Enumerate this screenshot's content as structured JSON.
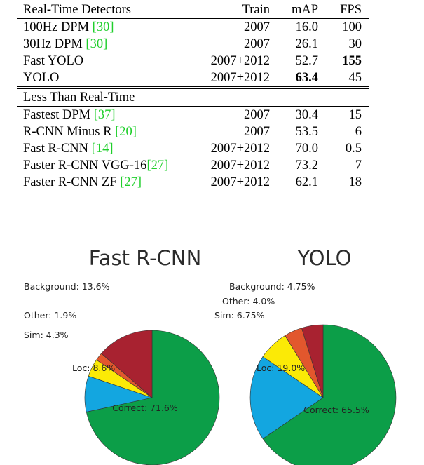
{
  "table": {
    "header": {
      "name": "Real-Time Detectors",
      "train": "Train",
      "map": "mAP",
      "fps": "FPS"
    },
    "realtime_rows": [
      {
        "name": "100Hz DPM ",
        "cite": "[30]",
        "train": "2007",
        "map": "16.0",
        "fps": "100"
      },
      {
        "name": "30Hz DPM ",
        "cite": "[30]",
        "train": "2007",
        "map": "26.1",
        "fps": "30"
      },
      {
        "name": "Fast YOLO",
        "cite": "",
        "train": "2007+2012",
        "map": "52.7",
        "fps": "155"
      },
      {
        "name": "YOLO",
        "cite": "",
        "train": "2007+2012",
        "map": "63.4",
        "fps": "45"
      }
    ],
    "section2_title": "Less Than Real-Time",
    "slower_rows": [
      {
        "name": "Fastest DPM ",
        "cite": "[37]",
        "train": "2007",
        "map": "30.4",
        "fps": "15"
      },
      {
        "name": "R-CNN Minus R ",
        "cite": "[20]",
        "train": "2007",
        "map": "53.5",
        "fps": "6"
      },
      {
        "name": "Fast R-CNN ",
        "cite": "[14]",
        "train": "2007+2012",
        "map": "70.0",
        "fps": "0.5"
      },
      {
        "name": "Faster R-CNN VGG-16",
        "cite": "[27]",
        "train": "2007+2012",
        "map": "73.2",
        "fps": "7"
      },
      {
        "name": "Faster R-CNN ZF ",
        "cite": "[27]",
        "train": "2007+2012",
        "map": "62.1",
        "fps": "18"
      }
    ]
  },
  "colors": {
    "correct": "#0c9e48",
    "loc": "#13a6e0",
    "sim": "#fbea06",
    "other": "#e2572d",
    "background": "#a82230",
    "citation": "#1fcf2b"
  },
  "chart_data": [
    {
      "type": "pie",
      "title": "Fast R-CNN",
      "slices": [
        {
          "name": "Correct",
          "value": 71.6,
          "label": "Correct: 71.6%"
        },
        {
          "name": "Loc",
          "value": 8.6,
          "label": "Loc: 8.6%"
        },
        {
          "name": "Sim",
          "value": 4.3,
          "label": "Sim: 4.3%"
        },
        {
          "name": "Other",
          "value": 1.9,
          "label": "Other: 1.9%"
        },
        {
          "name": "Background",
          "value": 13.6,
          "label": "Background: 13.6%"
        }
      ]
    },
    {
      "type": "pie",
      "title": "YOLO",
      "slices": [
        {
          "name": "Correct",
          "value": 65.5,
          "label": "Correct: 65.5%"
        },
        {
          "name": "Loc",
          "value": 19.0,
          "label": "Loc: 19.0%"
        },
        {
          "name": "Sim",
          "value": 6.75,
          "label": "Sim: 6.75%"
        },
        {
          "name": "Other",
          "value": 4.0,
          "label": "Other: 4.0%"
        },
        {
          "name": "Background",
          "value": 4.75,
          "label": "Background: 4.75%"
        }
      ]
    }
  ]
}
